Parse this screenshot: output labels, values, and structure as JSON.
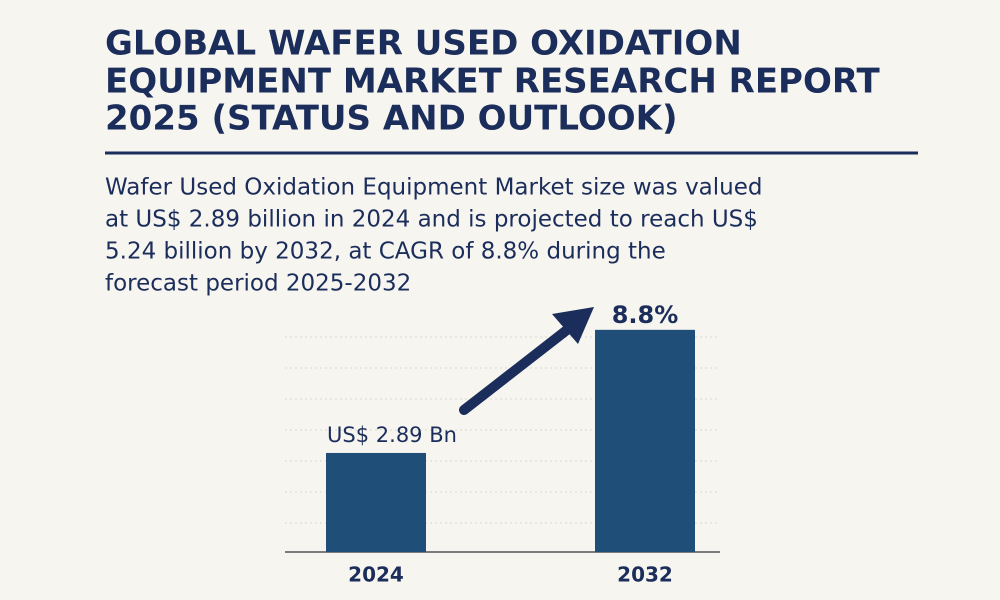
{
  "header": {
    "title": [
      "GLOBAL WAFER USED OXIDATION",
      "EQUIPMENT MARKET RESEARCH REPORT",
      "2025 (STATUS AND OUTLOOK)"
    ]
  },
  "description": [
    "Wafer Used Oxidation Equipment Market size was valued",
    "at US$ 2.89 billion in 2024 and is projected to reach US$",
    "5.24 billion by 2032, at CAGR of 8.8% during the",
    "forecast period 2025-2032"
  ],
  "chart_data": {
    "type": "bar",
    "categories": [
      "2024",
      "2032"
    ],
    "values": [
      2.89,
      5.24
    ],
    "value_labels": [
      "US$ 2.89 Bn",
      null
    ],
    "annotation": "8.8%",
    "color": "#1f4e79",
    "ylim": [
      1,
      6
    ]
  }
}
